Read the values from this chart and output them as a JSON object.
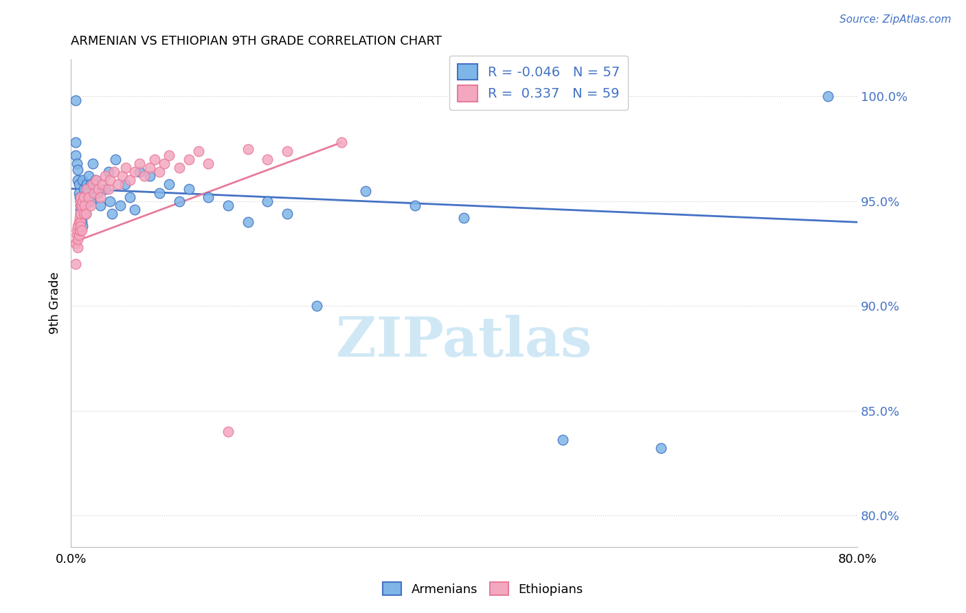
{
  "title": "ARMENIAN VS ETHIOPIAN 9TH GRADE CORRELATION CHART",
  "source": "Source: ZipAtlas.com",
  "ylabel": "9th Grade",
  "ytick_labels": [
    "80.0%",
    "85.0%",
    "90.0%",
    "95.0%",
    "100.0%"
  ],
  "ytick_values": [
    0.8,
    0.85,
    0.9,
    0.95,
    1.0
  ],
  "xmin": 0.0,
  "xmax": 0.8,
  "ymin": 0.785,
  "ymax": 1.018,
  "R_armenian": -0.046,
  "N_armenian": 57,
  "R_ethiopian": 0.337,
  "N_ethiopian": 59,
  "color_armenian": "#7EB6E8",
  "color_ethiopian": "#F4A8C0",
  "color_trendline_armenian": "#4472C4",
  "color_trendline_ethiopian": "#E87B9A",
  "watermark": "ZIPatlas",
  "watermark_color": "#D0E8F5",
  "armenian_x": [
    0.005,
    0.005,
    0.005,
    0.006,
    0.007,
    0.007,
    0.008,
    0.008,
    0.009,
    0.01,
    0.01,
    0.01,
    0.01,
    0.011,
    0.011,
    0.012,
    0.012,
    0.013,
    0.013,
    0.014,
    0.015,
    0.016,
    0.017,
    0.018,
    0.02,
    0.02,
    0.022,
    0.025,
    0.027,
    0.03,
    0.035,
    0.038,
    0.04,
    0.042,
    0.045,
    0.05,
    0.055,
    0.06,
    0.065,
    0.07,
    0.08,
    0.09,
    0.1,
    0.11,
    0.12,
    0.14,
    0.16,
    0.18,
    0.2,
    0.22,
    0.25,
    0.3,
    0.35,
    0.4,
    0.5,
    0.6,
    0.77
  ],
  "armenian_y": [
    0.998,
    0.978,
    0.972,
    0.968,
    0.965,
    0.96,
    0.958,
    0.954,
    0.952,
    0.95,
    0.948,
    0.946,
    0.944,
    0.942,
    0.94,
    0.938,
    0.96,
    0.956,
    0.952,
    0.948,
    0.944,
    0.958,
    0.954,
    0.962,
    0.958,
    0.95,
    0.968,
    0.96,
    0.954,
    0.948,
    0.956,
    0.964,
    0.95,
    0.944,
    0.97,
    0.948,
    0.958,
    0.952,
    0.946,
    0.964,
    0.962,
    0.954,
    0.958,
    0.95,
    0.956,
    0.952,
    0.948,
    0.94,
    0.95,
    0.944,
    0.9,
    0.955,
    0.948,
    0.942,
    0.836,
    0.832,
    1.0
  ],
  "ethiopian_x": [
    0.005,
    0.005,
    0.006,
    0.006,
    0.007,
    0.007,
    0.007,
    0.008,
    0.008,
    0.009,
    0.009,
    0.01,
    0.01,
    0.01,
    0.01,
    0.01,
    0.01,
    0.01,
    0.011,
    0.011,
    0.012,
    0.013,
    0.013,
    0.014,
    0.015,
    0.016,
    0.018,
    0.02,
    0.022,
    0.024,
    0.026,
    0.028,
    0.03,
    0.032,
    0.035,
    0.038,
    0.04,
    0.044,
    0.048,
    0.052,
    0.056,
    0.06,
    0.065,
    0.07,
    0.075,
    0.08,
    0.085,
    0.09,
    0.095,
    0.1,
    0.11,
    0.12,
    0.13,
    0.14,
    0.16,
    0.18,
    0.2,
    0.22,
    0.275
  ],
  "ethiopian_y": [
    0.92,
    0.93,
    0.934,
    0.936,
    0.928,
    0.932,
    0.938,
    0.934,
    0.94,
    0.942,
    0.936,
    0.94,
    0.944,
    0.948,
    0.95,
    0.952,
    0.938,
    0.944,
    0.948,
    0.936,
    0.95,
    0.944,
    0.952,
    0.948,
    0.944,
    0.956,
    0.952,
    0.948,
    0.958,
    0.954,
    0.96,
    0.956,
    0.952,
    0.958,
    0.962,
    0.956,
    0.96,
    0.964,
    0.958,
    0.962,
    0.966,
    0.96,
    0.964,
    0.968,
    0.962,
    0.966,
    0.97,
    0.964,
    0.968,
    0.972,
    0.966,
    0.97,
    0.974,
    0.968,
    0.84,
    0.975,
    0.97,
    0.974,
    0.978
  ],
  "arm_trend_x0": 0.0,
  "arm_trend_x1": 0.8,
  "arm_trend_y0": 0.956,
  "arm_trend_y1": 0.94,
  "eth_trend_x0": 0.0,
  "eth_trend_x1": 0.275,
  "eth_trend_y0": 0.93,
  "eth_trend_y1": 0.978
}
